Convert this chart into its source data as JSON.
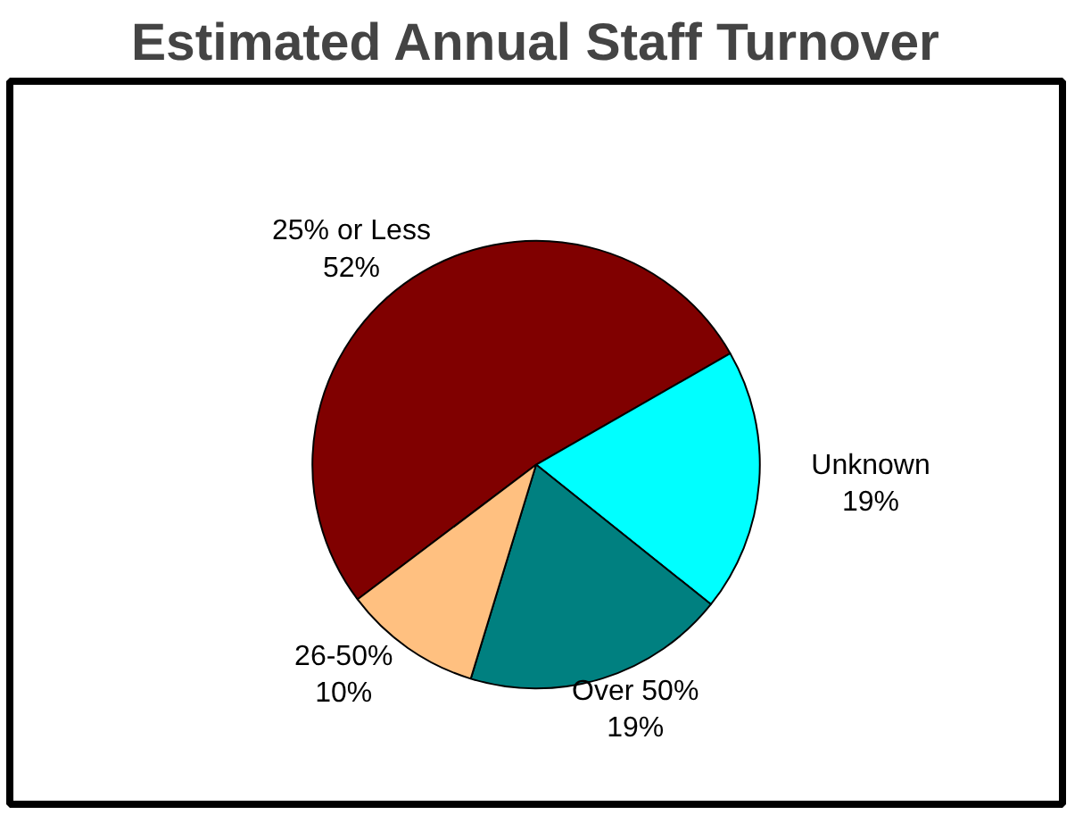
{
  "chart_data": {
    "type": "pie",
    "title": "Estimated Annual Staff Turnover",
    "categories": [
      "25% or Less",
      "Unknown",
      "Over 50%",
      "26-50%"
    ],
    "values": [
      52,
      19,
      19,
      10
    ],
    "value_labels": [
      "52%",
      "19%",
      "19%",
      "10%"
    ],
    "colors": [
      "#800000",
      "#00ffff",
      "#008080",
      "#ffc080"
    ]
  }
}
